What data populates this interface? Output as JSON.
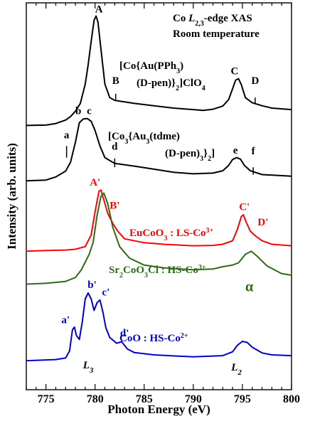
{
  "chart_data": {
    "type": "line",
    "title_line1": "Co L",
    "title_sub": "2,3",
    "title_line1_tail": "-edge XAS",
    "title_line2": "Room temperature",
    "xlabel": "Photon Energy (eV)",
    "ylabel": "Intensity (arb. units)",
    "xlim": [
      773,
      800
    ],
    "ylim": [
      0,
      1
    ],
    "x_ticks": [
      775,
      780,
      785,
      790,
      795,
      800
    ],
    "x_minor_step": 1,
    "grid": false,
    "series": [
      {
        "name_parts": [
          "[Co{Au(PPh",
          "3",
          ")"
        ],
        "name_line2_parts": [
          "(D-pen)}",
          "2",
          "]ClO",
          "4"
        ],
        "color": "#000000",
        "points": [
          [
            773,
            0.683
          ],
          [
            775,
            0.684
          ],
          [
            776,
            0.688
          ],
          [
            777,
            0.697
          ],
          [
            777.5,
            0.706
          ],
          [
            778,
            0.72
          ],
          [
            778.5,
            0.74
          ],
          [
            779,
            0.79
          ],
          [
            779.3,
            0.84
          ],
          [
            779.6,
            0.9
          ],
          [
            779.9,
            0.955
          ],
          [
            780.1,
            0.966
          ],
          [
            780.3,
            0.95
          ],
          [
            780.6,
            0.88
          ],
          [
            781,
            0.79
          ],
          [
            781.5,
            0.755
          ],
          [
            782,
            0.748
          ],
          [
            783,
            0.744
          ],
          [
            784,
            0.74
          ],
          [
            786,
            0.734
          ],
          [
            788,
            0.728
          ],
          [
            790,
            0.724
          ],
          [
            791,
            0.722
          ],
          [
            792,
            0.725
          ],
          [
            793,
            0.733
          ],
          [
            793.6,
            0.75
          ],
          [
            794,
            0.778
          ],
          [
            794.3,
            0.8
          ],
          [
            794.6,
            0.804
          ],
          [
            794.9,
            0.788
          ],
          [
            795.3,
            0.755
          ],
          [
            796,
            0.742
          ],
          [
            797,
            0.734
          ],
          [
            798,
            0.728
          ],
          [
            800,
            0.724
          ]
        ]
      },
      {
        "name_parts": [
          "[Co",
          "3",
          "{Au",
          "3",
          "(tdme)"
        ],
        "name_line2_parts": [
          "(D-pen)",
          "3",
          "}",
          "2",
          "]"
        ],
        "color": "#000000",
        "points": [
          [
            773,
            0.54
          ],
          [
            775,
            0.542
          ],
          [
            776,
            0.55
          ],
          [
            777,
            0.565
          ],
          [
            777.5,
            0.588
          ],
          [
            778,
            0.64
          ],
          [
            778.4,
            0.69
          ],
          [
            778.8,
            0.7
          ],
          [
            779.2,
            0.701
          ],
          [
            779.6,
            0.694
          ],
          [
            780,
            0.67
          ],
          [
            780.5,
            0.63
          ],
          [
            781,
            0.6
          ],
          [
            782,
            0.585
          ],
          [
            784,
            0.578
          ],
          [
            786,
            0.57
          ],
          [
            788,
            0.562
          ],
          [
            790,
            0.558
          ],
          [
            792,
            0.56
          ],
          [
            793,
            0.566
          ],
          [
            793.6,
            0.58
          ],
          [
            794,
            0.595
          ],
          [
            794.4,
            0.6
          ],
          [
            794.8,
            0.596
          ],
          [
            795.2,
            0.58
          ],
          [
            795.8,
            0.566
          ],
          [
            797,
            0.556
          ],
          [
            800,
            0.552
          ]
        ]
      },
      {
        "name_parts": [
          "EuCoO",
          "3",
          " : LS-Co",
          "3+"
        ],
        "color": "#ff0000",
        "points": [
          [
            773,
            0.358
          ],
          [
            775,
            0.36
          ],
          [
            777,
            0.361
          ],
          [
            778,
            0.363
          ],
          [
            779,
            0.37
          ],
          [
            779.6,
            0.4
          ],
          [
            780,
            0.46
          ],
          [
            780.4,
            0.513
          ],
          [
            780.6,
            0.516
          ],
          [
            780.9,
            0.49
          ],
          [
            781.3,
            0.455
          ],
          [
            781.8,
            0.43
          ],
          [
            782.3,
            0.41
          ],
          [
            783,
            0.39
          ],
          [
            785,
            0.38
          ],
          [
            787,
            0.376
          ],
          [
            790,
            0.372
          ],
          [
            792,
            0.373
          ],
          [
            793,
            0.376
          ],
          [
            794,
            0.385
          ],
          [
            794.5,
            0.415
          ],
          [
            794.9,
            0.448
          ],
          [
            795.1,
            0.452
          ],
          [
            795.4,
            0.432
          ],
          [
            795.8,
            0.41
          ],
          [
            796.3,
            0.398
          ],
          [
            797,
            0.385
          ],
          [
            798,
            0.376
          ],
          [
            800,
            0.372
          ]
        ]
      },
      {
        "name_parts": [
          "Sr",
          "2",
          "CoO",
          "3",
          "Cl : HS-Co",
          "3+"
        ],
        "color": "#2e6b14",
        "points": [
          [
            773,
            0.273
          ],
          [
            775,
            0.275
          ],
          [
            777,
            0.28
          ],
          [
            778,
            0.29
          ],
          [
            778.6,
            0.31
          ],
          [
            779,
            0.33
          ],
          [
            779.4,
            0.35
          ],
          [
            779.8,
            0.38
          ],
          [
            780.2,
            0.45
          ],
          [
            780.6,
            0.5
          ],
          [
            780.9,
            0.508
          ],
          [
            781.3,
            0.48
          ],
          [
            781.8,
            0.42
          ],
          [
            782.5,
            0.37
          ],
          [
            783.5,
            0.34
          ],
          [
            785,
            0.322
          ],
          [
            787,
            0.315
          ],
          [
            790,
            0.31
          ],
          [
            792,
            0.312
          ],
          [
            793,
            0.318
          ],
          [
            794,
            0.322
          ],
          [
            794.6,
            0.328
          ],
          [
            795.3,
            0.35
          ],
          [
            795.9,
            0.358
          ],
          [
            796.5,
            0.345
          ],
          [
            797.5,
            0.32
          ],
          [
            799,
            0.3
          ],
          [
            800,
            0.296
          ]
        ]
      },
      {
        "name_parts": [
          "CoO : HS-Co",
          "2+"
        ],
        "color": "#0000cc",
        "points": [
          [
            773,
            0.075
          ],
          [
            776,
            0.078
          ],
          [
            777,
            0.082
          ],
          [
            777.4,
            0.1
          ],
          [
            777.7,
            0.155
          ],
          [
            777.9,
            0.162
          ],
          [
            778.1,
            0.14
          ],
          [
            778.4,
            0.13
          ],
          [
            778.7,
            0.175
          ],
          [
            779.0,
            0.235
          ],
          [
            779.3,
            0.25
          ],
          [
            779.6,
            0.235
          ],
          [
            779.9,
            0.205
          ],
          [
            780.2,
            0.225
          ],
          [
            780.5,
            0.232
          ],
          [
            780.8,
            0.2
          ],
          [
            781.1,
            0.16
          ],
          [
            781.5,
            0.135
          ],
          [
            782.2,
            0.12
          ],
          [
            782.7,
            0.124
          ],
          [
            783.3,
            0.105
          ],
          [
            784,
            0.096
          ],
          [
            786,
            0.09
          ],
          [
            790,
            0.085
          ],
          [
            793,
            0.088
          ],
          [
            794,
            0.098
          ],
          [
            794.5,
            0.115
          ],
          [
            795,
            0.125
          ],
          [
            795.5,
            0.122
          ],
          [
            796,
            0.11
          ],
          [
            797,
            0.095
          ],
          [
            798,
            0.09
          ],
          [
            800,
            0.088
          ]
        ]
      }
    ],
    "annotations": [
      {
        "text": "A",
        "color": "#000000",
        "x": 780.4,
        "y": 0.975,
        "marker": false
      },
      {
        "text": "B",
        "color": "#000000",
        "x": 782.1,
        "y": 0.79,
        "marker": true,
        "marker_y": [
          0.748,
          0.765
        ]
      },
      {
        "text": "C",
        "color": "#000000",
        "x": 794.2,
        "y": 0.815,
        "marker": false
      },
      {
        "text": "D",
        "color": "#000000",
        "x": 796.3,
        "y": 0.79,
        "marker": true,
        "marker_y": [
          0.738,
          0.755
        ]
      },
      {
        "text": "a",
        "color": "#000000",
        "x": 777.1,
        "y": 0.65,
        "marker": true,
        "marker_y": [
          0.6,
          0.63
        ]
      },
      {
        "text": "b",
        "color": "#000000",
        "x": 778.3,
        "y": 0.712,
        "marker": false
      },
      {
        "text": "c",
        "color": "#000000",
        "x": 779.4,
        "y": 0.712,
        "marker": false
      },
      {
        "text": "d",
        "color": "#000000",
        "x": 782.0,
        "y": 0.62,
        "marker": true,
        "marker_y": [
          0.575,
          0.598
        ]
      },
      {
        "text": "e",
        "color": "#000000",
        "x": 794.3,
        "y": 0.61,
        "marker": false
      },
      {
        "text": "f",
        "color": "#000000",
        "x": 796.1,
        "y": 0.608,
        "marker": true,
        "marker_y": [
          0.556,
          0.575
        ]
      },
      {
        "text": "A'",
        "color": "#ff0000",
        "x": 780.0,
        "y": 0.528,
        "marker": false
      },
      {
        "text": "B'",
        "color": "#ff0000",
        "x": 782.0,
        "y": 0.468,
        "marker": false
      },
      {
        "text": "C'",
        "color": "#ff0000",
        "x": 795.2,
        "y": 0.464,
        "marker": false
      },
      {
        "text": "D'",
        "color": "#ff0000",
        "x": 797.1,
        "y": 0.425,
        "marker": false
      },
      {
        "text": "α",
        "color": "#2e6b14",
        "x": 795.7,
        "y": 0.255,
        "marker": false
      },
      {
        "text": "a'",
        "color": "#0000cc",
        "x": 777.0,
        "y": 0.172,
        "marker": false
      },
      {
        "text": "b'",
        "color": "#0000cc",
        "x": 779.7,
        "y": 0.263,
        "marker": false
      },
      {
        "text": "c'",
        "color": "#0000cc",
        "x": 781.1,
        "y": 0.244,
        "marker": false
      },
      {
        "text": "d'",
        "color": "#0000cc",
        "x": 783.0,
        "y": 0.138,
        "marker": false
      },
      {
        "text": "L",
        "sub": "3",
        "color": "#000000",
        "x": 779.3,
        "y": 0.055,
        "marker": false,
        "italic": true
      },
      {
        "text": "L",
        "sub": "2",
        "color": "#000000",
        "x": 794.4,
        "y": 0.05,
        "marker": false,
        "italic": true
      }
    ]
  }
}
